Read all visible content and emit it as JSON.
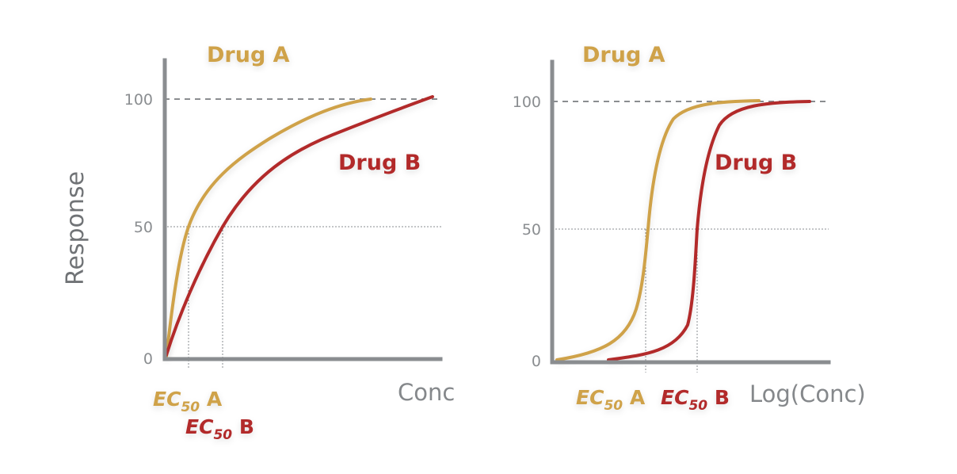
{
  "ylabel": "Response",
  "colors": {
    "drug_a": "#cfa24a",
    "drug_b": "#b22a2a",
    "axis": "#8a8d90"
  },
  "chart_data": [
    {
      "type": "line",
      "xlabel": "Conc",
      "ylabel": "Response",
      "ylim": [
        0,
        100
      ],
      "y_ticks": [
        "0",
        "50",
        "100"
      ],
      "series": [
        {
          "name": "Drug A",
          "ec50_label": {
            "prefix": "EC",
            "sub": "50",
            "suffix": " A"
          },
          "x": [
            0,
            0.3,
            0.8,
            1,
            1.5,
            2,
            3,
            4,
            5,
            6,
            7,
            8,
            9
          ],
          "values": [
            0,
            23,
            44,
            50,
            60,
            67,
            75,
            80,
            84,
            86,
            88,
            89,
            91
          ]
        },
        {
          "name": "Drug B",
          "ec50_label": {
            "prefix": "EC",
            "sub": "50",
            "suffix": " B"
          },
          "x": [
            0,
            0.5,
            1,
            1.5,
            2,
            3,
            4,
            5,
            6,
            8,
            10,
            12
          ],
          "values": [
            0,
            13,
            24,
            35,
            50,
            60,
            67,
            72,
            77,
            84,
            89,
            92
          ]
        }
      ]
    },
    {
      "type": "line",
      "xlabel": "Log(Conc)",
      "ylim": [
        0,
        100
      ],
      "y_ticks": [
        "0",
        "50",
        "100"
      ],
      "series": [
        {
          "name": "Drug A",
          "ec50_label": {
            "prefix": "EC",
            "sub": "50",
            "suffix": " A"
          },
          "x": [
            0,
            0.5,
            1,
            1.5,
            2,
            2.5,
            3,
            3.5,
            4,
            5,
            6,
            7
          ],
          "values": [
            0,
            2,
            5,
            10,
            20,
            50,
            80,
            92,
            96,
            98,
            99,
            100
          ]
        },
        {
          "name": "Drug B",
          "ec50_label": {
            "prefix": "EC",
            "sub": "50",
            "suffix": " B"
          },
          "x": [
            1.5,
            2,
            2.5,
            3,
            3.5,
            4,
            4.5,
            5,
            5.5,
            6,
            7,
            8
          ],
          "values": [
            0,
            1,
            3,
            7,
            20,
            50,
            80,
            92,
            96,
            98,
            99,
            100
          ]
        }
      ]
    }
  ]
}
